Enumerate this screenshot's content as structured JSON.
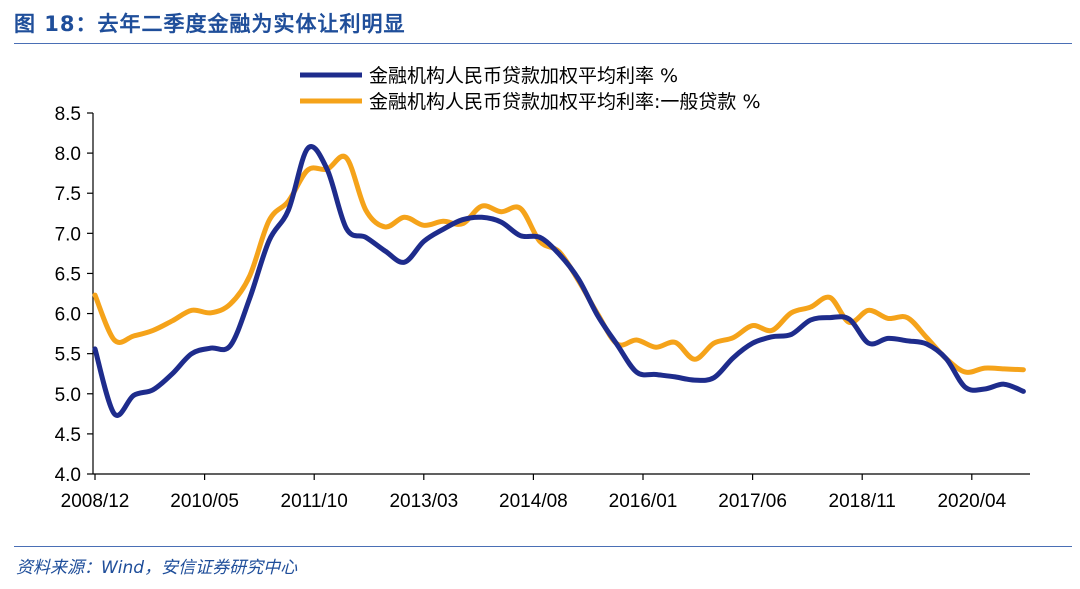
{
  "header": {
    "title": "图 18：去年二季度金融为实体让利明显"
  },
  "footer": {
    "source": "资料来源：Wind，安信证券研究中心"
  },
  "chart_data": {
    "type": "line",
    "title": "",
    "xlabel": "",
    "ylabel": "",
    "ylim": [
      4.0,
      8.5
    ],
    "yticks": [
      "4.0",
      "4.5",
      "5.0",
      "5.5",
      "6.0",
      "6.5",
      "7.0",
      "7.5",
      "8.0",
      "8.5"
    ],
    "xticks": [
      "2008/12",
      "2010/05",
      "2011/10",
      "2013/03",
      "2014/08",
      "2016/01",
      "2017/06",
      "2018/11",
      "2020/04"
    ],
    "grid": false,
    "legend_position": "top",
    "series": [
      {
        "name": "金融机构人民币贷款加权平均利率 %",
        "color": "#1e2c8c",
        "x": [
          "2008/12",
          "2009/03",
          "2009/06",
          "2009/09",
          "2009/12",
          "2010/03",
          "2010/06",
          "2010/09",
          "2010/12",
          "2011/03",
          "2011/06",
          "2011/09",
          "2011/12",
          "2012/03",
          "2012/06",
          "2012/09",
          "2012/12",
          "2013/03",
          "2013/06",
          "2013/09",
          "2013/12",
          "2014/03",
          "2014/06",
          "2014/09",
          "2014/12",
          "2015/03",
          "2015/06",
          "2015/09",
          "2015/12",
          "2016/03",
          "2016/06",
          "2016/09",
          "2016/12",
          "2017/03",
          "2017/06",
          "2017/09",
          "2017/12",
          "2018/03",
          "2018/06",
          "2018/09",
          "2018/12",
          "2019/03",
          "2019/06",
          "2019/09",
          "2019/12",
          "2020/03",
          "2020/06",
          "2020/09",
          "2020/12"
        ],
        "values": [
          5.56,
          4.75,
          4.98,
          5.05,
          5.25,
          5.5,
          5.57,
          5.6,
          6.19,
          6.91,
          7.29,
          8.06,
          7.8,
          7.06,
          6.95,
          6.78,
          6.64,
          6.9,
          7.05,
          7.17,
          7.2,
          7.14,
          6.97,
          6.95,
          6.74,
          6.43,
          5.97,
          5.61,
          5.27,
          5.24,
          5.21,
          5.17,
          5.2,
          5.45,
          5.63,
          5.71,
          5.74,
          5.92,
          5.95,
          5.93,
          5.63,
          5.69,
          5.66,
          5.62,
          5.44,
          5.08,
          5.06,
          5.12,
          5.03
        ]
      },
      {
        "name": "金融机构人民币贷款加权平均利率:一般贷款 %",
        "color": "#f5a31a",
        "x": [
          "2008/12",
          "2009/03",
          "2009/06",
          "2009/09",
          "2009/12",
          "2010/03",
          "2010/06",
          "2010/09",
          "2010/12",
          "2011/03",
          "2011/06",
          "2011/09",
          "2011/12",
          "2012/03",
          "2012/06",
          "2012/09",
          "2012/12",
          "2013/03",
          "2013/06",
          "2013/09",
          "2013/12",
          "2014/03",
          "2014/06",
          "2014/09",
          "2014/12",
          "2015/03",
          "2015/06",
          "2015/09",
          "2015/12",
          "2016/03",
          "2016/06",
          "2016/09",
          "2016/12",
          "2017/03",
          "2017/06",
          "2017/09",
          "2017/12",
          "2018/03",
          "2018/06",
          "2018/09",
          "2018/12",
          "2019/03",
          "2019/06",
          "2019/09",
          "2019/12",
          "2020/03",
          "2020/06",
          "2020/09",
          "2020/12"
        ],
        "values": [
          6.23,
          5.67,
          5.72,
          5.79,
          5.91,
          6.04,
          6.01,
          6.12,
          6.47,
          7.16,
          7.4,
          7.79,
          7.8,
          7.94,
          7.29,
          7.08,
          7.2,
          7.1,
          7.15,
          7.12,
          7.34,
          7.27,
          7.31,
          6.9,
          6.77,
          6.41,
          5.99,
          5.62,
          5.67,
          5.58,
          5.64,
          5.43,
          5.63,
          5.7,
          5.85,
          5.79,
          6.01,
          6.08,
          6.2,
          5.89,
          6.04,
          5.94,
          5.95,
          5.7,
          5.44,
          5.27,
          5.32,
          5.31,
          5.3
        ]
      }
    ]
  }
}
